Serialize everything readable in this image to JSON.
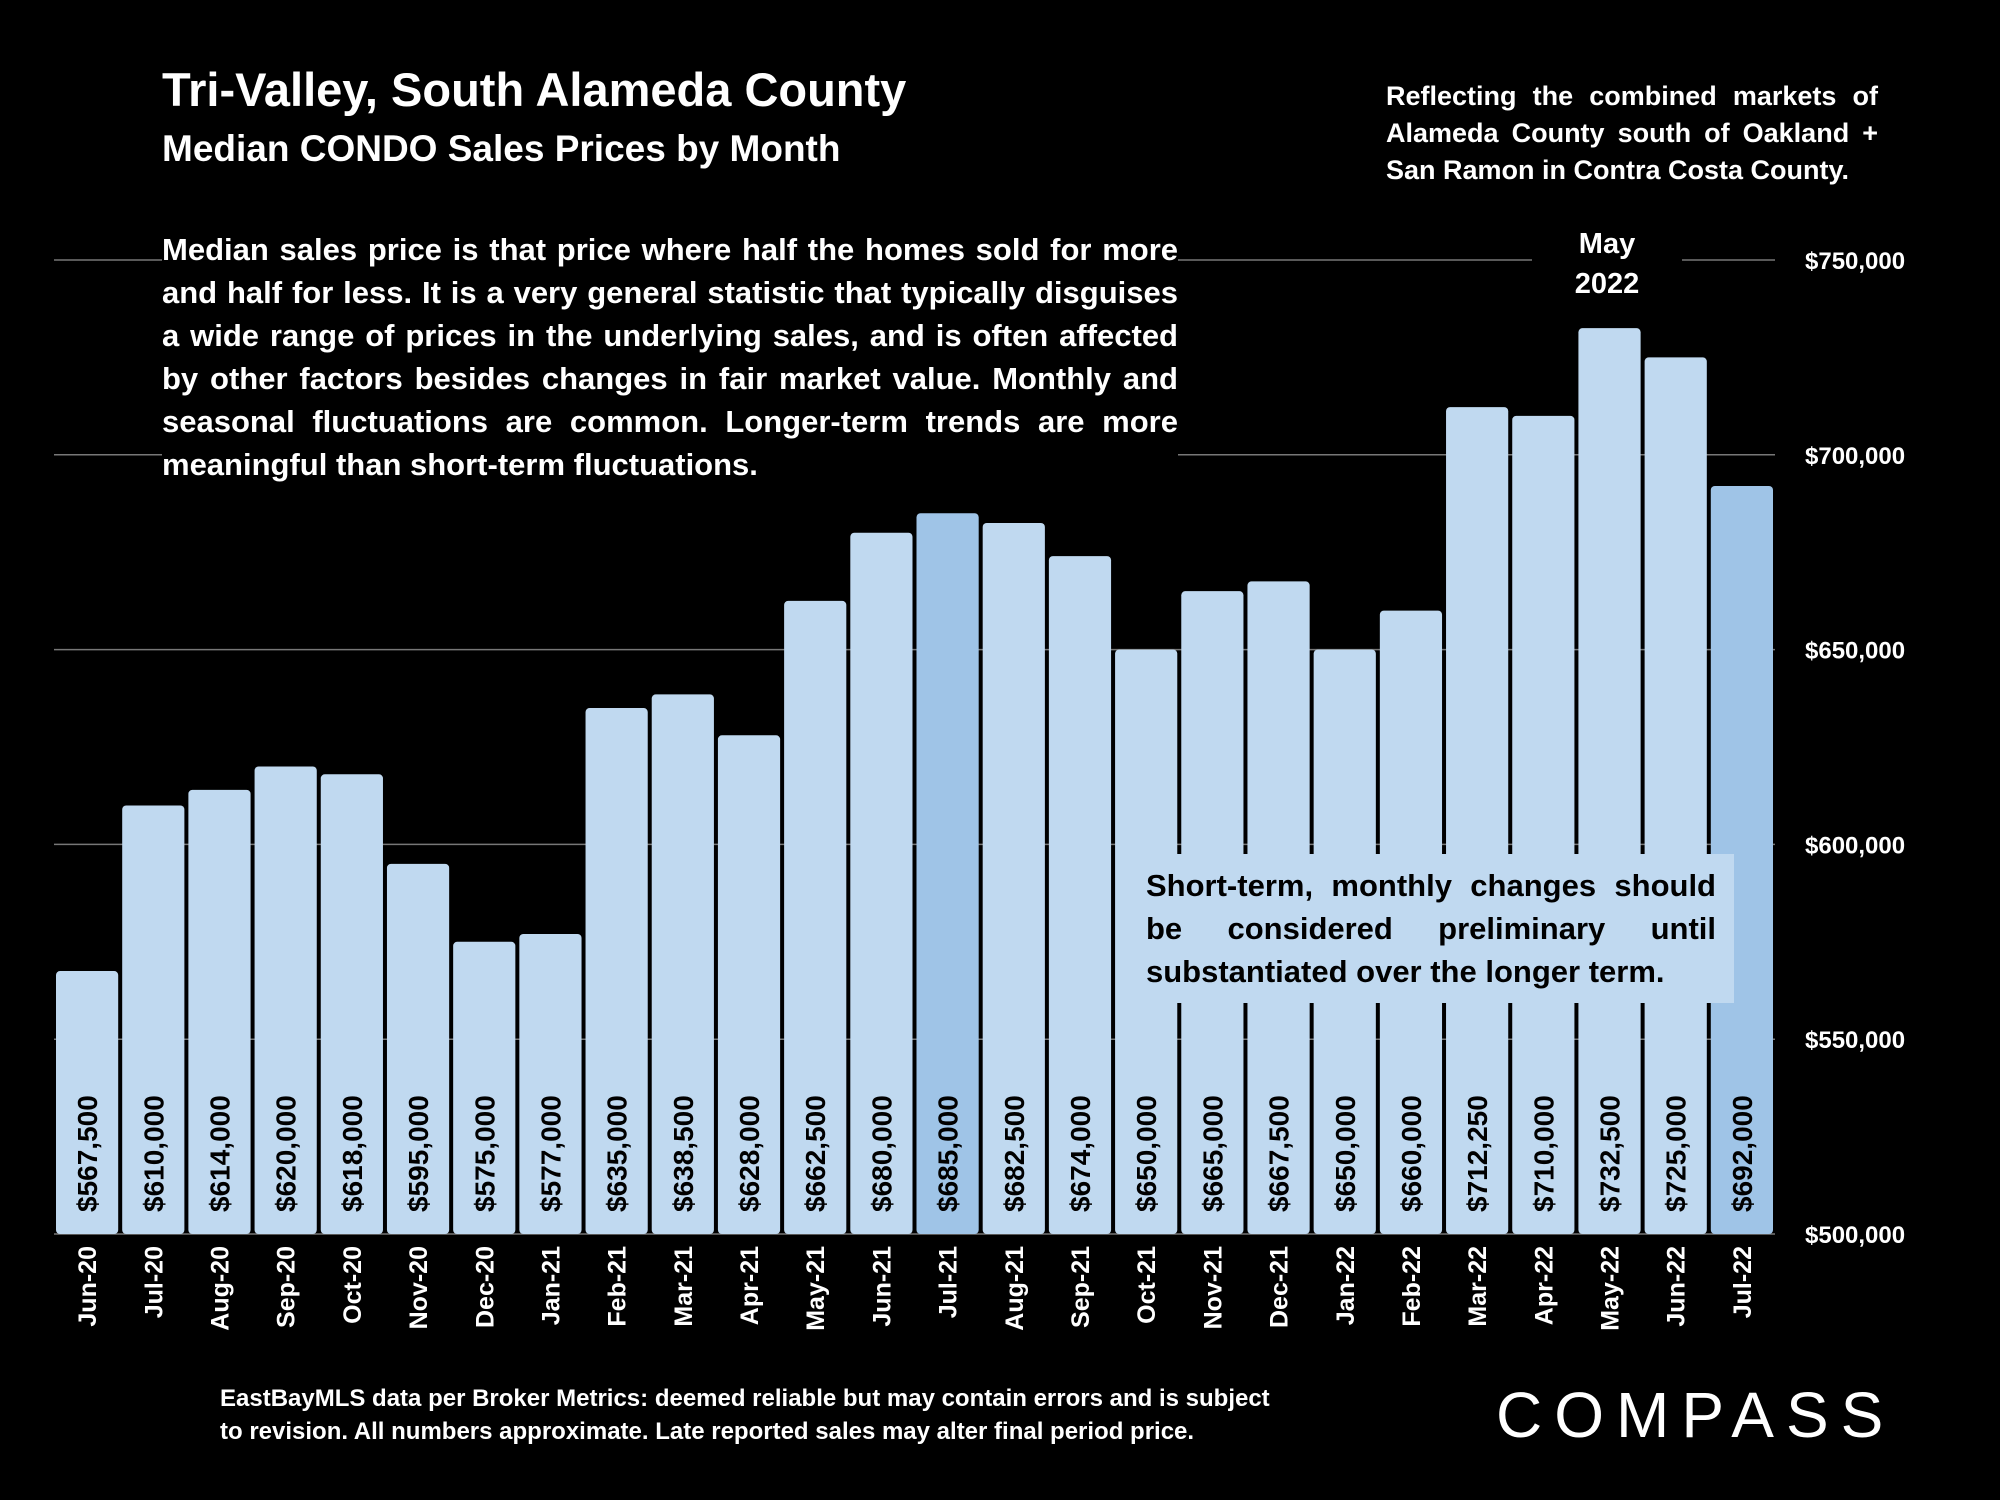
{
  "title": "Tri-Valley, South Alameda County",
  "subtitle": "Median CONDO Sales Prices by Month",
  "top_note": "Reflecting the combined markets of Alameda County south of Oakland + San Ramon in Contra Costa County.",
  "description": "Median sales price is that price where half the homes sold for more and half for less. It is a very general statistic that typically disguises a wide range of prices in the underlying sales, and is often affected by other factors besides changes in fair market value. Monthly and seasonal fluctuations are common. Longer-term trends are more meaningful than short-term fluctuations.",
  "may_label": {
    "line1": "May",
    "line2": "2022"
  },
  "callout": "Short-term, monthly changes should be considered preliminary until substantiated over the longer term.",
  "footer": {
    "line1": "EastBayMLS data per Broker Metrics:  deemed reliable but may contain errors and is subject",
    "line2": "to revision. All numbers approximate. Late reported sales may alter final period price."
  },
  "logo": "COMPASS",
  "colors": {
    "background": "#000000",
    "bar": "#c0d9f0",
    "bar_highlight": "#9fc4e7",
    "grid": "#777777"
  },
  "chart_data": {
    "type": "bar",
    "categories": [
      "Jun-20",
      "Jul-20",
      "Aug-20",
      "Sep-20",
      "Oct-20",
      "Nov-20",
      "Dec-20",
      "Jan-21",
      "Feb-21",
      "Mar-21",
      "Apr-21",
      "May-21",
      "Jun-21",
      "Jul-21",
      "Aug-21",
      "Sep-21",
      "Oct-21",
      "Nov-21",
      "Dec-21",
      "Jan-22",
      "Feb-22",
      "Mar-22",
      "Apr-22",
      "May-22",
      "Jun-22",
      "Jul-22"
    ],
    "values": [
      567500,
      610000,
      614000,
      620000,
      618000,
      595000,
      575000,
      577000,
      635000,
      638500,
      628000,
      662500,
      680000,
      685000,
      682500,
      674000,
      650000,
      665000,
      667500,
      650000,
      660000,
      712250,
      710000,
      732500,
      725000,
      692000
    ],
    "data_labels": [
      "$567,500",
      "$610,000",
      "$614,000",
      "$620,000",
      "$618,000",
      "$595,000",
      "$575,000",
      "$577,000",
      "$635,000",
      "$638,500",
      "$628,000",
      "$662,500",
      "$680,000",
      "$685,000",
      "$682,500",
      "$674,000",
      "$650,000",
      "$665,000",
      "$667,500",
      "$650,000",
      "$660,000",
      "$712,250",
      "$710,000",
      "$732,500",
      "$725,000",
      "$692,000"
    ],
    "highlighted": [
      "Jul-21",
      "Jul-22"
    ],
    "ylim": [
      500000,
      750000
    ],
    "y_ticks": [
      500000,
      550000,
      600000,
      650000,
      700000,
      750000
    ],
    "y_tick_labels": [
      "$500,000",
      "$550,000",
      "$600,000",
      "$650,000",
      "$700,000",
      "$750,000"
    ],
    "y_axis_side": "right",
    "grid": true,
    "legend": "none"
  }
}
